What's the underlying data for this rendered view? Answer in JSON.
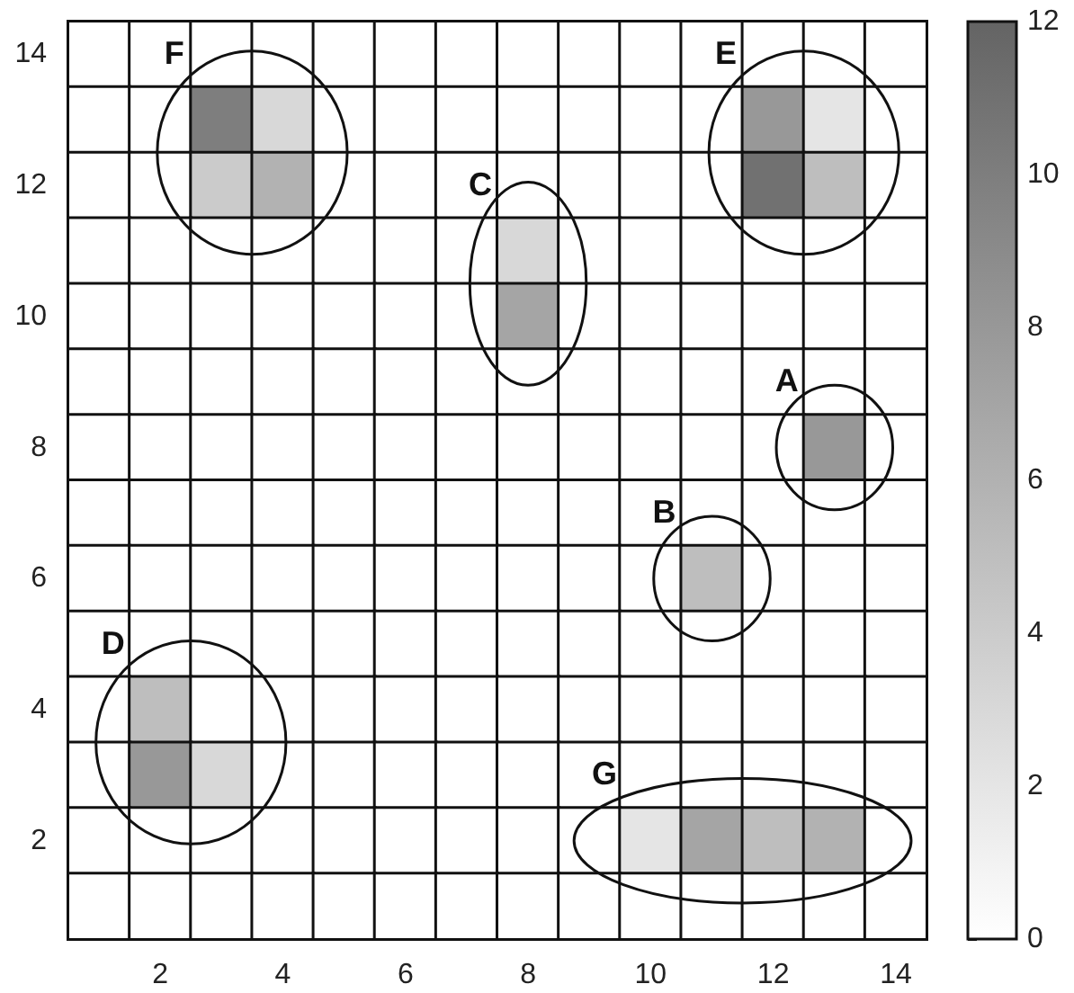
{
  "chart_data": {
    "type": "heatmap",
    "categories": [
      null,
      "2",
      null,
      "4",
      null,
      "6",
      null,
      "8",
      null,
      "10",
      null,
      "12",
      null,
      "14"
    ],
    "y_categories": [
      "14",
      null,
      "12",
      null,
      "10",
      null,
      "8",
      null,
      "6",
      null,
      "4",
      null,
      "2",
      null
    ],
    "cells": [
      [
        0,
        0,
        0,
        0,
        0,
        0,
        0,
        0,
        0,
        0,
        0,
        0,
        0,
        0
      ],
      [
        0,
        0,
        10,
        3,
        0,
        0,
        0,
        0,
        0,
        0,
        0,
        8,
        2,
        0
      ],
      [
        0,
        0,
        4,
        6,
        0,
        0,
        0,
        0,
        0,
        0,
        0,
        11,
        5,
        0
      ],
      [
        0,
        0,
        0,
        0,
        0,
        0,
        0,
        3,
        0,
        0,
        0,
        0,
        0,
        0
      ],
      [
        0,
        0,
        0,
        0,
        0,
        0,
        0,
        7,
        0,
        0,
        0,
        0,
        0,
        0
      ],
      [
        0,
        0,
        0,
        0,
        0,
        0,
        0,
        0,
        0,
        0,
        0,
        0,
        0,
        0
      ],
      [
        0,
        0,
        0,
        0,
        0,
        0,
        0,
        0,
        0,
        0,
        0,
        0,
        8,
        0
      ],
      [
        0,
        0,
        0,
        0,
        0,
        0,
        0,
        0,
        0,
        0,
        0,
        0,
        0,
        0
      ],
      [
        0,
        0,
        0,
        0,
        0,
        0,
        0,
        0,
        0,
        0,
        5,
        0,
        0,
        0
      ],
      [
        0,
        0,
        0,
        0,
        0,
        0,
        0,
        0,
        0,
        0,
        0,
        0,
        0,
        0
      ],
      [
        0,
        5,
        0,
        0,
        0,
        0,
        0,
        0,
        0,
        0,
        0,
        0,
        0,
        0
      ],
      [
        0,
        8,
        3,
        0,
        0,
        0,
        0,
        0,
        0,
        0,
        0,
        0,
        0,
        0
      ],
      [
        0,
        0,
        0,
        0,
        0,
        0,
        0,
        0,
        0,
        2,
        7,
        5,
        6,
        0
      ],
      [
        0,
        0,
        0,
        0,
        0,
        0,
        0,
        0,
        0,
        0,
        0,
        0,
        0,
        0
      ]
    ],
    "clim": [
      0,
      12
    ],
    "cticks": [
      0,
      2,
      4,
      6,
      8,
      10,
      12
    ],
    "annotations": [
      "F",
      "E",
      "C",
      "A",
      "B",
      "D",
      "G"
    ]
  }
}
